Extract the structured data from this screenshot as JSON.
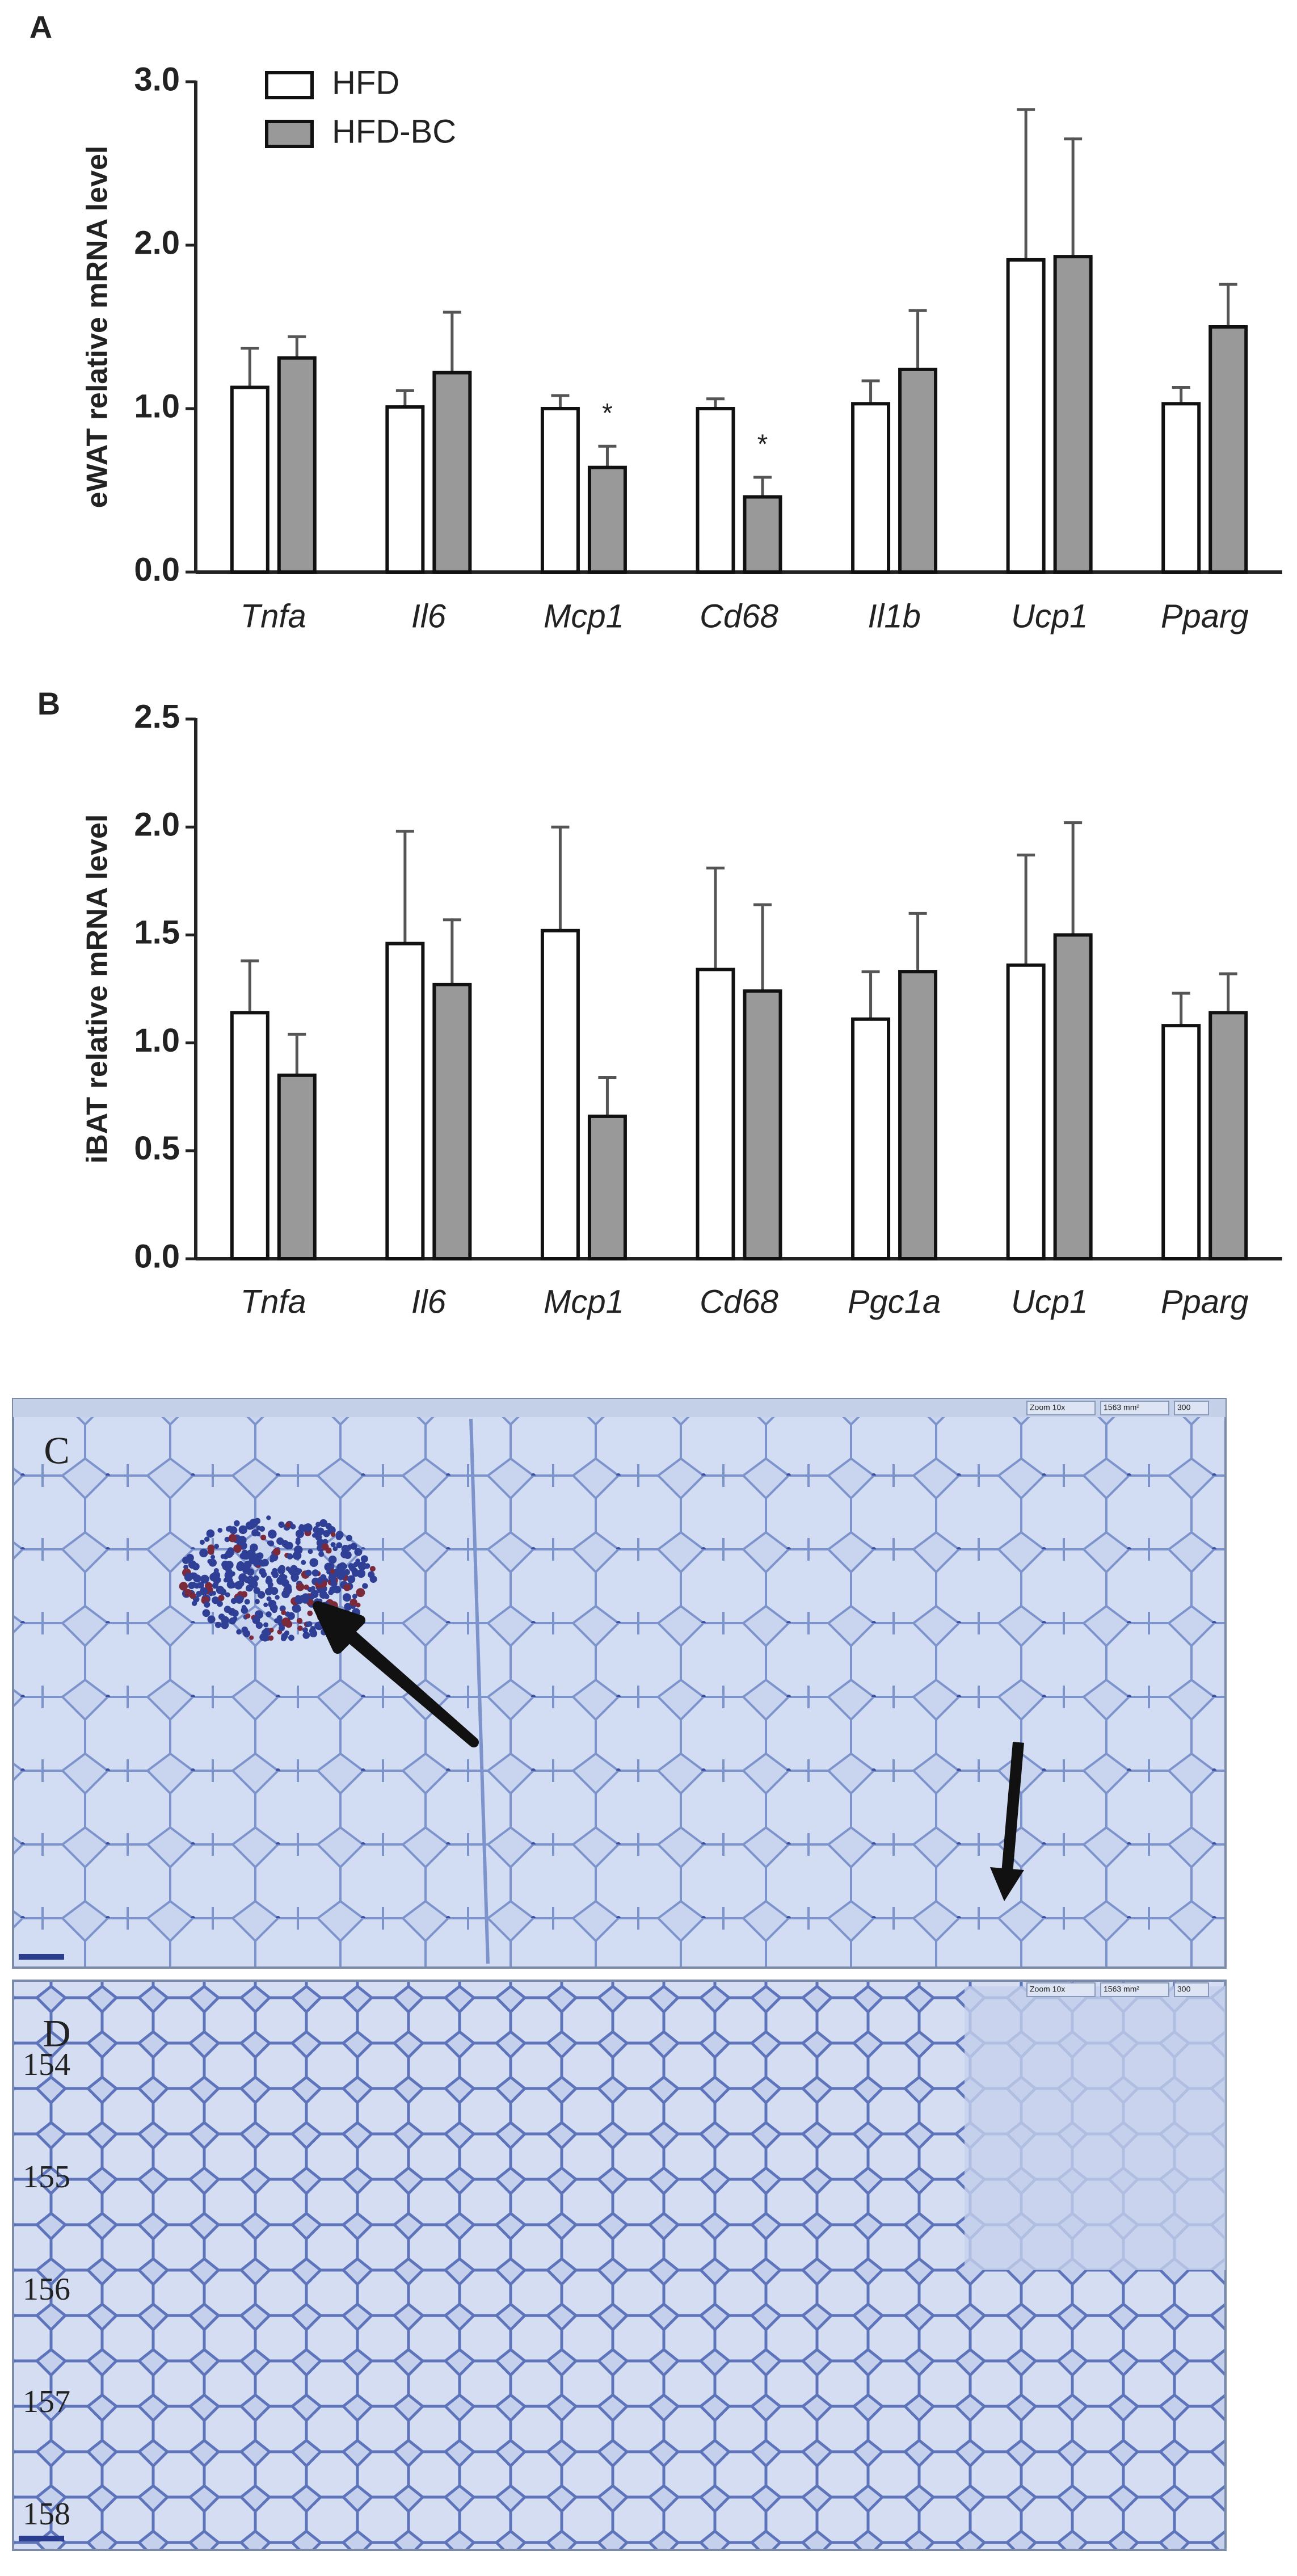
{
  "chart_data": [
    {
      "type": "bar",
      "panel": "A",
      "y_label": "eWAT relative mRNA level",
      "categories": [
        "Tnfa",
        "Il6",
        "Mcp1",
        "Cd68",
        "Il1b",
        "Ucp1",
        "Pparg"
      ],
      "series": [
        {
          "name": "HFD",
          "color": "#ffffff",
          "values": [
            1.13,
            1.01,
            1.0,
            1.0,
            1.03,
            1.91,
            1.03
          ],
          "errors": [
            0.24,
            0.1,
            0.08,
            0.06,
            0.14,
            0.92,
            0.1
          ]
        },
        {
          "name": "HFD-BC",
          "color": "#999999",
          "values": [
            1.31,
            1.22,
            0.64,
            0.46,
            1.24,
            1.93,
            1.5
          ],
          "errors": [
            0.13,
            0.37,
            0.13,
            0.12,
            0.36,
            0.72,
            0.26
          ],
          "markers": [
            null,
            null,
            "*",
            "*",
            null,
            null,
            null
          ]
        }
      ],
      "ylim": [
        0,
        3
      ],
      "yticks": [
        {
          "value": 0,
          "label": "0.0"
        },
        {
          "value": 1,
          "label": "1.0"
        },
        {
          "value": 2,
          "label": "2.0"
        },
        {
          "value": 3,
          "label": "3.0"
        }
      ],
      "legend": "top-left"
    },
    {
      "type": "bar",
      "panel": "B",
      "y_label": "iBAT relative mRNA level",
      "categories": [
        "Tnfa",
        "Il6",
        "Mcp1",
        "Cd68",
        "Pgc1a",
        "Ucp1",
        "Pparg"
      ],
      "series": [
        {
          "name": "HFD",
          "color": "#ffffff",
          "values": [
            1.14,
            1.46,
            1.52,
            1.34,
            1.11,
            1.36,
            1.08
          ],
          "errors": [
            0.24,
            0.52,
            0.48,
            0.47,
            0.22,
            0.51,
            0.15
          ]
        },
        {
          "name": "HFD-BC",
          "color": "#999999",
          "values": [
            0.85,
            1.27,
            0.66,
            1.24,
            1.33,
            1.5,
            1.14
          ],
          "errors": [
            0.19,
            0.3,
            0.18,
            0.4,
            0.27,
            0.52,
            0.18
          ]
        }
      ],
      "ylim": [
        0,
        2.5
      ],
      "yticks": [
        {
          "value": 0,
          "label": "0.0"
        },
        {
          "value": 0.5,
          "label": "0.5"
        },
        {
          "value": 1,
          "label": "1.0"
        },
        {
          "value": 1.5,
          "label": "1.5"
        },
        {
          "value": 2,
          "label": "2.0"
        },
        {
          "value": 2.5,
          "label": "2.5"
        }
      ]
    }
  ],
  "panels": [
    {
      "label": "C",
      "toolbar": [
        "Zoom 10x",
        "1563 mm²",
        "300"
      ]
    },
    {
      "label": "D",
      "toolbar": [
        "Zoom 10x",
        "1563 mm²",
        "300"
      ],
      "line_numbers": [
        "154",
        "155",
        "156",
        "157",
        "158"
      ]
    }
  ]
}
